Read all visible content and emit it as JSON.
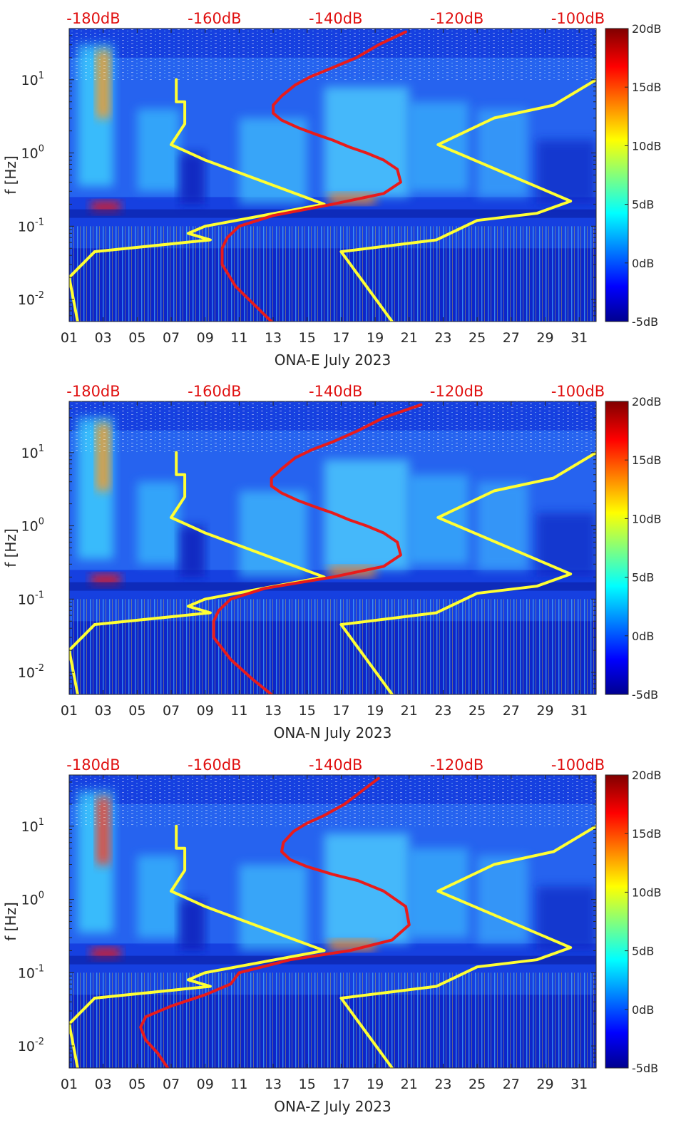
{
  "chart_data": [
    {
      "type": "heatmap",
      "title": "",
      "xlabel": "ONA-E July 2023",
      "ylabel": "f [Hz]",
      "x_ticks": [
        "01",
        "03",
        "05",
        "07",
        "09",
        "11",
        "13",
        "15",
        "17",
        "19",
        "21",
        "23",
        "25",
        "27",
        "29",
        "31"
      ],
      "x_tick_values": [
        1,
        3,
        5,
        7,
        9,
        11,
        13,
        15,
        17,
        19,
        21,
        23,
        25,
        27,
        29,
        31
      ],
      "xlim": [
        1,
        32
      ],
      "y_scale": "log",
      "y_ticks": [
        {
          "exp": "-2",
          "value": 0.01
        },
        {
          "exp": "-1",
          "value": 0.1
        },
        {
          "exp": "0",
          "value": 1
        },
        {
          "exp": "1",
          "value": 10
        }
      ],
      "ylim": [
        0.005,
        50
      ],
      "top_axis_labels": [
        "-180dB",
        "-160dB",
        "-140dB",
        "-120dB",
        "-100dB"
      ],
      "top_axis_values": [
        -180,
        -160,
        -140,
        -120,
        -100
      ],
      "top_axis_range": [
        -184,
        -97
      ],
      "colorbar_labels": [
        "20dB",
        "15dB",
        "10dB",
        "5dB",
        "0dB",
        "-5dB"
      ],
      "colorbar_values": [
        20,
        15,
        10,
        5,
        0,
        -5
      ],
      "colorbar_range": [
        -5,
        20
      ],
      "colormap": "jet",
      "series": [
        {
          "color": "#ffff33",
          "x": [
            7.3,
            7.3,
            7.8,
            7.8,
            7.0,
            9.0,
            16.0,
            9.0,
            8.0,
            9.3,
            2.5,
            1.0,
            1.5
          ],
          "y": [
            10,
            5,
            5,
            2.5,
            1.3,
            0.8,
            0.2,
            0.1,
            0.08,
            0.065,
            0.045,
            0.02,
            0.005
          ]
        },
        {
          "color": "#ffff33",
          "x": [
            32,
            29.5,
            26,
            22.7,
            30.5,
            28.5,
            25,
            22.6,
            17,
            20
          ],
          "y": [
            10,
            4.5,
            3,
            1.3,
            0.22,
            0.15,
            0.12,
            0.065,
            0.045,
            0.005
          ]
        },
        {
          "color": "#e81b1b",
          "x": [
            20.8,
            19.2,
            17.9,
            16.3,
            15.2,
            14.3,
            13.5,
            13.0,
            13.0,
            13.5,
            14.5,
            15.5,
            16.5,
            17.5,
            18.5,
            19.5,
            20.3,
            20.5,
            19.5,
            16.5,
            13.0,
            11.0,
            10.3,
            10.0,
            10.0,
            10.8,
            12.0,
            12.9
          ],
          "y": [
            45,
            30,
            20,
            14,
            11,
            8.5,
            6,
            4.5,
            3.5,
            2.8,
            2.2,
            1.8,
            1.5,
            1.2,
            1.0,
            0.8,
            0.6,
            0.4,
            0.28,
            0.2,
            0.14,
            0.1,
            0.07,
            0.05,
            0.03,
            0.015,
            0.008,
            0.005
          ]
        }
      ]
    },
    {
      "type": "heatmap",
      "title": "",
      "xlabel": "ONA-N July 2023",
      "ylabel": "f [Hz]",
      "x_ticks": [
        "01",
        "03",
        "05",
        "07",
        "09",
        "11",
        "13",
        "15",
        "17",
        "19",
        "21",
        "23",
        "25",
        "27",
        "29",
        "31"
      ],
      "x_tick_values": [
        1,
        3,
        5,
        7,
        9,
        11,
        13,
        15,
        17,
        19,
        21,
        23,
        25,
        27,
        29,
        31
      ],
      "xlim": [
        1,
        32
      ],
      "y_scale": "log",
      "y_ticks": [
        {
          "exp": "-2",
          "value": 0.01
        },
        {
          "exp": "-1",
          "value": 0.1
        },
        {
          "exp": "0",
          "value": 1
        },
        {
          "exp": "1",
          "value": 10
        }
      ],
      "ylim": [
        0.005,
        50
      ],
      "top_axis_labels": [
        "-180dB",
        "-160dB",
        "-140dB",
        "-120dB",
        "-100dB"
      ],
      "top_axis_values": [
        -180,
        -160,
        -140,
        -120,
        -100
      ],
      "top_axis_range": [
        -184,
        -97
      ],
      "colorbar_labels": [
        "20dB",
        "15dB",
        "10dB",
        "5dB",
        "0dB",
        "-5dB"
      ],
      "colorbar_values": [
        20,
        15,
        10,
        5,
        0,
        -5
      ],
      "colorbar_range": [
        -5,
        20
      ],
      "colormap": "jet",
      "series": [
        {
          "color": "#ffff33",
          "x": [
            7.3,
            7.3,
            7.8,
            7.8,
            7.0,
            9.0,
            16.0,
            9.0,
            8.0,
            9.3,
            2.5,
            1.0,
            1.5
          ],
          "y": [
            10,
            5,
            5,
            2.5,
            1.3,
            0.8,
            0.2,
            0.1,
            0.08,
            0.065,
            0.045,
            0.02,
            0.005
          ]
        },
        {
          "color": "#ffff33",
          "x": [
            32,
            29.5,
            26,
            22.7,
            30.5,
            28.5,
            25,
            22.6,
            17,
            20
          ],
          "y": [
            10,
            4.5,
            3,
            1.3,
            0.22,
            0.15,
            0.12,
            0.065,
            0.045,
            0.005
          ]
        },
        {
          "color": "#e81b1b",
          "x": [
            21.7,
            19.5,
            18.0,
            16.5,
            15.3,
            14.3,
            13.5,
            12.9,
            12.9,
            13.5,
            14.5,
            15.5,
            16.5,
            17.5,
            18.5,
            19.5,
            20.3,
            20.5,
            19.5,
            16.5,
            12.5,
            10.5,
            9.8,
            9.5,
            9.5,
            10.5,
            11.8,
            12.9
          ],
          "y": [
            45,
            30,
            20,
            14,
            11,
            8.5,
            6,
            4.5,
            3.5,
            2.8,
            2.2,
            1.8,
            1.5,
            1.2,
            1.0,
            0.8,
            0.6,
            0.4,
            0.28,
            0.2,
            0.14,
            0.1,
            0.07,
            0.05,
            0.03,
            0.015,
            0.008,
            0.005
          ]
        }
      ]
    },
    {
      "type": "heatmap",
      "title": "",
      "xlabel": "ONA-Z July 2023",
      "ylabel": "f [Hz]",
      "x_ticks": [
        "01",
        "03",
        "05",
        "07",
        "09",
        "11",
        "13",
        "15",
        "17",
        "19",
        "21",
        "23",
        "25",
        "27",
        "29",
        "31"
      ],
      "x_tick_values": [
        1,
        3,
        5,
        7,
        9,
        11,
        13,
        15,
        17,
        19,
        21,
        23,
        25,
        27,
        29,
        31
      ],
      "xlim": [
        1,
        32
      ],
      "y_scale": "log",
      "y_ticks": [
        {
          "exp": "-2",
          "value": 0.01
        },
        {
          "exp": "-1",
          "value": 0.1
        },
        {
          "exp": "0",
          "value": 1
        },
        {
          "exp": "1",
          "value": 10
        }
      ],
      "ylim": [
        0.005,
        50
      ],
      "top_axis_labels": [
        "-180dB",
        "-160dB",
        "-140dB",
        "-120dB",
        "-100dB"
      ],
      "top_axis_values": [
        -180,
        -160,
        -140,
        -120,
        -100
      ],
      "top_axis_range": [
        -184,
        -97
      ],
      "colorbar_labels": [
        "20dB",
        "15dB",
        "10dB",
        "5dB",
        "0dB",
        "-5dB"
      ],
      "colorbar_values": [
        20,
        15,
        10,
        5,
        0,
        -5
      ],
      "colorbar_range": [
        -5,
        20
      ],
      "colormap": "jet",
      "series": [
        {
          "color": "#ffff33",
          "x": [
            7.3,
            7.3,
            7.8,
            7.8,
            7.0,
            9.0,
            16.0,
            9.0,
            8.0,
            9.3,
            2.5,
            1.0,
            1.5
          ],
          "y": [
            10,
            5,
            5,
            2.5,
            1.3,
            0.8,
            0.2,
            0.1,
            0.08,
            0.065,
            0.045,
            0.02,
            0.005
          ]
        },
        {
          "color": "#ffff33",
          "x": [
            32,
            29.5,
            26,
            22.7,
            30.5,
            28.5,
            25,
            22.6,
            17,
            20
          ],
          "y": [
            10,
            4.5,
            3,
            1.3,
            0.22,
            0.15,
            0.12,
            0.065,
            0.045,
            0.005
          ]
        },
        {
          "color": "#e81b1b",
          "x": [
            19.2,
            18.2,
            17.2,
            16.0,
            15.0,
            14.2,
            13.6,
            13.5,
            14.0,
            15.0,
            16.5,
            18.0,
            19.5,
            20.8,
            21.0,
            20.0,
            17.5,
            14.0,
            11.0,
            10.5,
            9.0,
            7.0,
            5.5,
            5.2,
            5.5,
            6.2,
            6.8
          ],
          "y": [
            45,
            30,
            20,
            14,
            11,
            8.5,
            6,
            4.5,
            3.5,
            2.8,
            2.2,
            1.8,
            1.3,
            0.8,
            0.45,
            0.28,
            0.2,
            0.15,
            0.1,
            0.07,
            0.05,
            0.035,
            0.025,
            0.018,
            0.012,
            0.008,
            0.005
          ]
        }
      ]
    }
  ]
}
